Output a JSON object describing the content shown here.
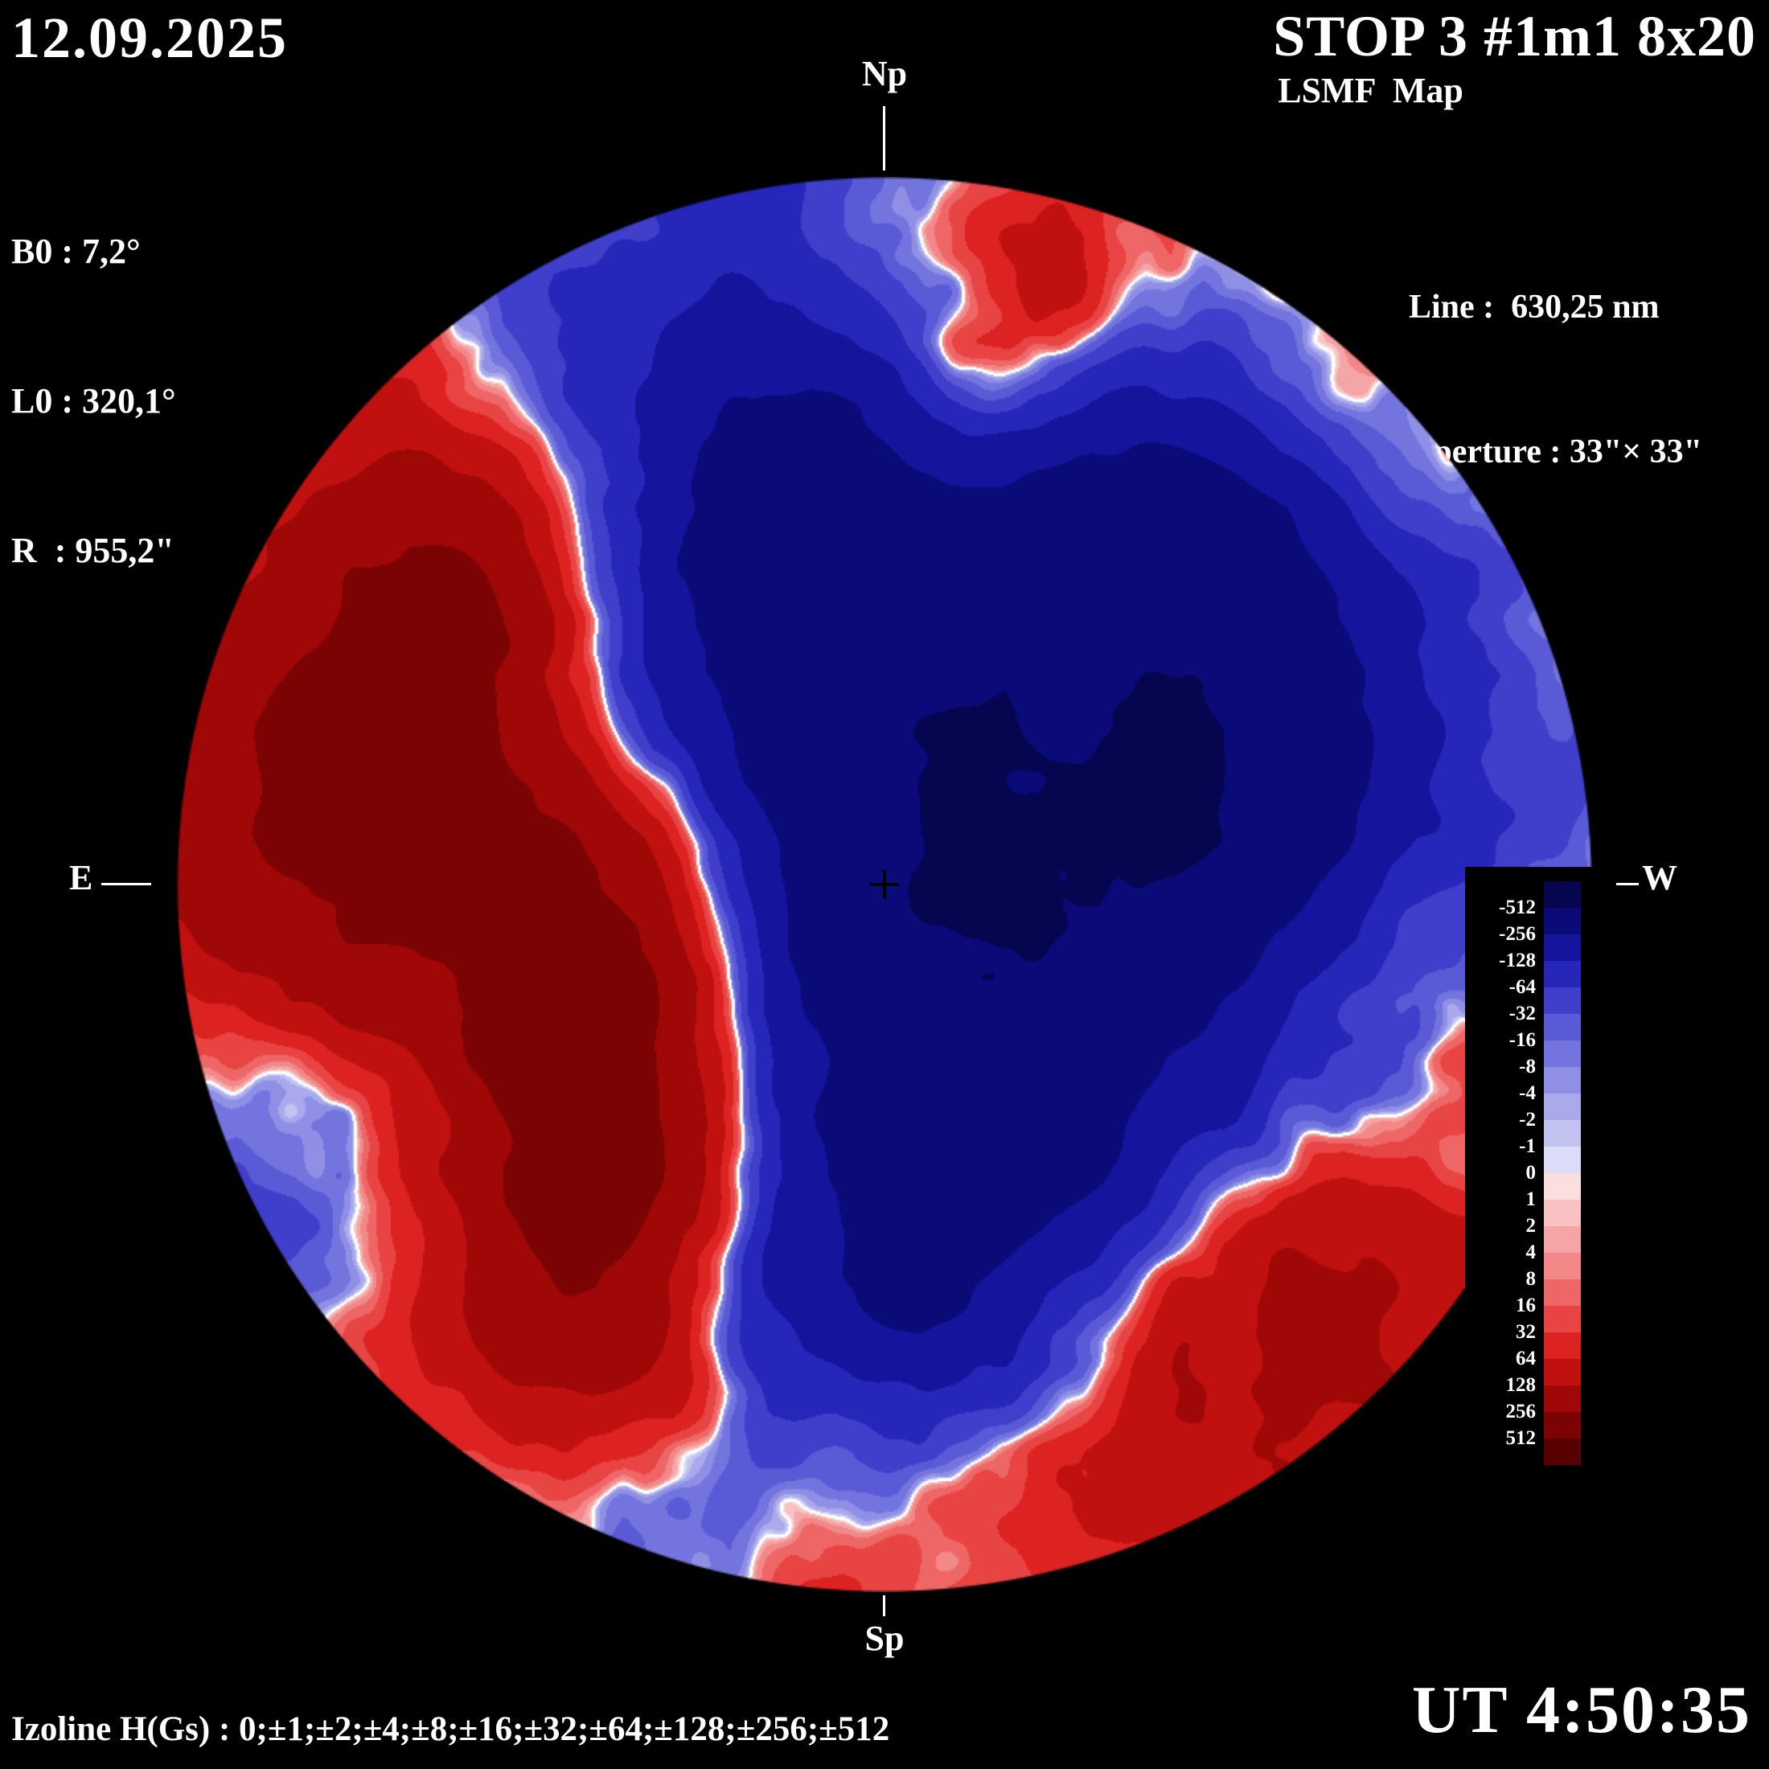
{
  "header": {
    "date": "12.09.2025",
    "title": "STOP 3 #1m1 8x20",
    "subtitle": "LSMF  Map",
    "params": [
      "B0 : 7,2°",
      "L0 : 320,1°",
      "R  : 955,2\""
    ],
    "line": "Line :  630,25 nm",
    "aperture": "Aperture : 33\"× 33\""
  },
  "compass": {
    "north": "Np",
    "south": "Sp",
    "east": "E",
    "west": "W"
  },
  "footer": {
    "izoline": "Izoline H(Gs) : 0;±1;±2;±4;±8;±16;±32;±64;±128;±256;±512",
    "time": "UT 4:50:35"
  },
  "chart_data": {
    "type": "heatmap",
    "title": "LSMF  Map",
    "units": "Gs",
    "isoline_levels": [
      0,
      1,
      2,
      4,
      8,
      16,
      32,
      64,
      128,
      256,
      512
    ],
    "colorbar_labels": [
      "-512",
      "-256",
      "-128",
      "-64",
      "-32",
      "-16",
      "-8",
      "-4",
      "-2",
      "-1",
      "0",
      "1",
      "2",
      "4",
      "8",
      "16",
      "32",
      "64",
      "128",
      "256",
      "512"
    ],
    "negative_colors": [
      "#dcdcf8",
      "#c3c3f2",
      "#a9a9ec",
      "#8f8fe5",
      "#7474de",
      "#5a5ad6",
      "#3f3fcb",
      "#2626ba",
      "#14149c",
      "#0a0a78",
      "#050550"
    ],
    "positive_colors": [
      "#fbdede",
      "#f8c2c2",
      "#f5a5a5",
      "#f28888",
      "#ee6666",
      "#e84444",
      "#dd2222",
      "#c11010",
      "#a00808",
      "#7c0303",
      "#580000"
    ],
    "contour_color": "#ffffff",
    "background": "#000000",
    "legend_position": "right",
    "field_model": {
      "seed": 9,
      "octaves": 5,
      "base_scale": 3.2,
      "persistence": 0.55,
      "amplitude": 300,
      "limb_attenuation": 0.45,
      "regions": [
        {
          "x": 0.55,
          "y": 0.4,
          "s": 0.22,
          "a": -300
        },
        {
          "x": 0.4,
          "y": 0.28,
          "s": 0.13,
          "a": -260
        },
        {
          "x": 0.62,
          "y": 0.62,
          "s": 0.15,
          "a": -240
        },
        {
          "x": 0.47,
          "y": 0.72,
          "s": 0.12,
          "a": -230
        },
        {
          "x": 0.78,
          "y": 0.42,
          "s": 0.12,
          "a": -200
        },
        {
          "x": 0.7,
          "y": 0.22,
          "s": 0.08,
          "a": -160
        },
        {
          "x": 0.16,
          "y": 0.7,
          "s": 0.08,
          "a": -180
        },
        {
          "x": 0.1,
          "y": 0.48,
          "s": 0.14,
          "a": 320
        },
        {
          "x": 0.22,
          "y": 0.3,
          "s": 0.11,
          "a": 240
        },
        {
          "x": 0.33,
          "y": 0.62,
          "s": 0.11,
          "a": 300
        },
        {
          "x": 0.28,
          "y": 0.8,
          "s": 0.11,
          "a": 240
        },
        {
          "x": 0.55,
          "y": 0.12,
          "s": 0.1,
          "a": 200
        },
        {
          "x": 0.9,
          "y": 0.55,
          "s": 0.11,
          "a": 240
        },
        {
          "x": 0.8,
          "y": 0.8,
          "s": 0.11,
          "a": 200
        }
      ]
    }
  }
}
